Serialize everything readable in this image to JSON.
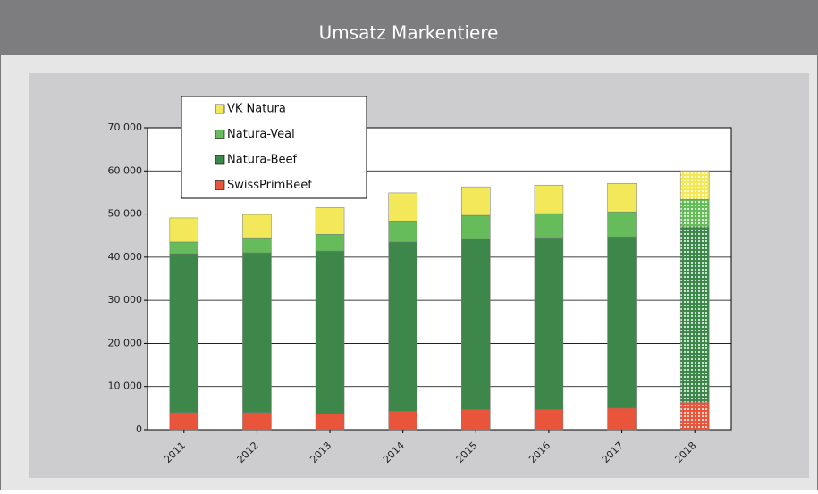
{
  "chart_data": {
    "type": "stacked_bar",
    "title": "Umsatz Markentiere",
    "categories": [
      "2011",
      "2012",
      "2013",
      "2014",
      "2015",
      "2016",
      "2017",
      "2018"
    ],
    "dotted": [
      false,
      false,
      false,
      false,
      false,
      false,
      false,
      true
    ],
    "series": [
      {
        "name": "SwissPrimBeef",
        "color": "#e8553a",
        "values": [
          4000,
          4000,
          3700,
          4300,
          4700,
          4700,
          5000,
          6400
        ]
      },
      {
        "name": "Natura-Beef",
        "color": "#3d874a",
        "values": [
          36800,
          37000,
          37700,
          39200,
          39600,
          39800,
          39700,
          40600
        ]
      },
      {
        "name": "Natura-Veal",
        "color": "#66bb5a",
        "values": [
          2700,
          3500,
          3900,
          4900,
          5400,
          5600,
          5800,
          6400
        ]
      },
      {
        "name": "VK Natura",
        "color": "#f2e85a",
        "values": [
          5600,
          5400,
          6200,
          6500,
          6600,
          6600,
          6600,
          6600
        ]
      }
    ],
    "ylim": [
      0,
      70000
    ],
    "yticks": [
      0,
      {
        "value": 10000,
        "label": "10 000"
      },
      {
        "value": 20000,
        "label": "20 000"
      },
      {
        "value": 30000,
        "label": "30 000"
      },
      {
        "value": 40000,
        "label": "40 000"
      },
      {
        "value": 50000,
        "label": "50 000"
      },
      {
        "value": 60000,
        "label": "60 000"
      },
      {
        "value": 70000,
        "label": "70 000"
      }
    ],
    "grid": true
  }
}
